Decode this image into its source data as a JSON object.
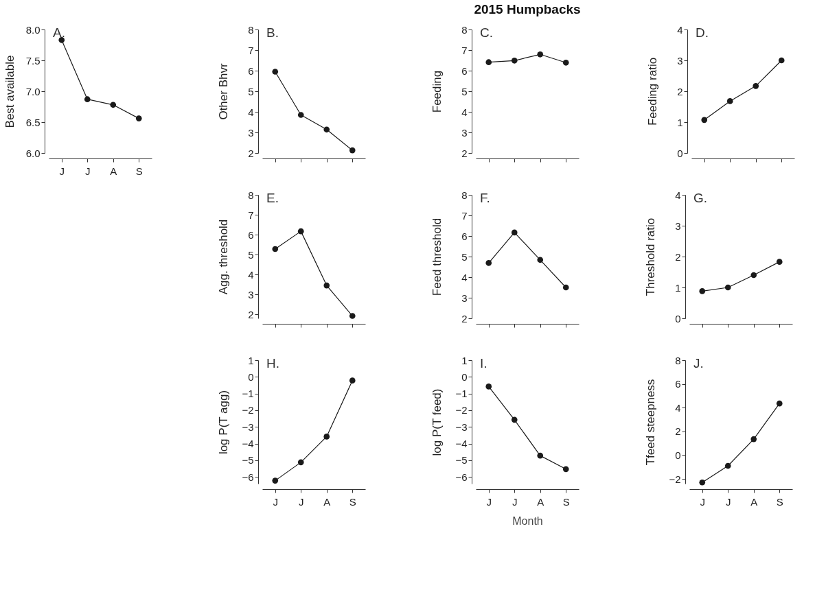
{
  "chart_data": [
    {
      "type": "line",
      "categories": [
        "J",
        "J",
        "A",
        "S"
      ],
      "values": [
        7.83,
        6.87,
        6.78,
        6.56
      ],
      "color": "#1a1a1a",
      "ylabel": "Best available",
      "ylim": [
        6.0,
        8.0
      ],
      "yticks": [
        {
          "value": 6,
          "label": "6.0"
        },
        {
          "value": 6.5,
          "label": "6.5"
        },
        {
          "value": 7,
          "label": "7.0"
        },
        {
          "value": 7.5,
          "label": "7.5"
        },
        {
          "value": 8,
          "label": "8.0"
        }
      ],
      "annotations": [
        "A."
      ],
      "marker": "circle",
      "line_style": "solid",
      "grid": false
    },
    {
      "type": "line",
      "categories": [
        null,
        null,
        null,
        null
      ],
      "values": [
        5.95,
        3.85,
        3.14,
        2.13
      ],
      "color": "#1a1a1a",
      "ylabel": "Other Bhvr",
      "ylim": [
        2,
        8
      ],
      "yticks": [
        2,
        3,
        4,
        5,
        6,
        7,
        8
      ],
      "annotations": [
        "B."
      ],
      "marker": "circle",
      "line_style": "solid",
      "grid": false
    },
    {
      "type": "line",
      "categories": [
        null,
        null,
        null,
        null
      ],
      "values": [
        6.41,
        6.49,
        6.79,
        6.39
      ],
      "color": "#1a1a1a",
      "title": "2015 Humpbacks",
      "ylabel": "Feeding",
      "ylim": [
        2,
        8
      ],
      "yticks": [
        2,
        3,
        4,
        5,
        6,
        7,
        8
      ],
      "annotations": [
        "C."
      ],
      "marker": "circle",
      "line_style": "solid",
      "grid": false
    },
    {
      "type": "line",
      "categories": [
        null,
        null,
        null,
        null
      ],
      "values": [
        1.07,
        1.68,
        2.17,
        3.0
      ],
      "color": "#1a1a1a",
      "ylabel": "Feeding ratio",
      "ylim": [
        0,
        4
      ],
      "yticks": [
        0,
        1,
        2,
        3,
        4
      ],
      "annotations": [
        "D."
      ],
      "marker": "circle",
      "line_style": "solid",
      "grid": false
    },
    {
      "type": "line",
      "categories": [
        null,
        null,
        null,
        null
      ],
      "values": [
        5.28,
        6.17,
        3.45,
        1.92
      ],
      "color": "#1a1a1a",
      "ylabel": "Agg. threshold",
      "ylim": [
        1.8,
        8
      ],
      "yticks": [
        2,
        3,
        4,
        5,
        6,
        7,
        8
      ],
      "annotations": [
        "E."
      ],
      "marker": "circle",
      "line_style": "solid",
      "grid": false
    },
    {
      "type": "line",
      "categories": [
        null,
        null,
        null,
        null
      ],
      "values": [
        4.69,
        6.17,
        4.84,
        3.5
      ],
      "color": "#1a1a1a",
      "ylabel": "Feed threshold",
      "ylim": [
        2,
        8
      ],
      "yticks": [
        2,
        3,
        4,
        5,
        6,
        7,
        8
      ],
      "annotations": [
        "F."
      ],
      "marker": "circle",
      "line_style": "solid",
      "grid": false
    },
    {
      "type": "line",
      "categories": [
        null,
        null,
        null,
        null
      ],
      "values": [
        0.88,
        1.0,
        1.4,
        1.83
      ],
      "color": "#1a1a1a",
      "ylabel": "Threshold ratio",
      "ylim": [
        0,
        4
      ],
      "yticks": [
        0,
        1,
        2,
        3,
        4
      ],
      "annotations": [
        "G."
      ],
      "marker": "circle",
      "line_style": "solid",
      "grid": false
    },
    {
      "type": "line",
      "categories": [
        "J",
        "J",
        "A",
        "S"
      ],
      "values": [
        -6.22,
        -5.12,
        -3.58,
        -0.22
      ],
      "color": "#1a1a1a",
      "ylabel": "log P(T agg)",
      "ylim": [
        -6.4,
        1
      ],
      "yticks": [
        -6,
        -5,
        -4,
        -3,
        -2,
        -1,
        0,
        1
      ],
      "annotations": [
        "H."
      ],
      "marker": "circle",
      "line_style": "solid",
      "grid": false
    },
    {
      "type": "line",
      "categories": [
        "J",
        "J",
        "A",
        "S"
      ],
      "values": [
        -0.58,
        -2.57,
        -4.72,
        -5.53
      ],
      "color": "#1a1a1a",
      "xlabel": "Month",
      "ylabel": "log P(T feed)",
      "ylim": [
        -6.4,
        1
      ],
      "yticks": [
        -6,
        -5,
        -4,
        -3,
        -2,
        -1,
        0,
        1
      ],
      "annotations": [
        "I."
      ],
      "marker": "circle",
      "line_style": "solid",
      "grid": false
    },
    {
      "type": "line",
      "categories": [
        "J",
        "J",
        "A",
        "S"
      ],
      "values": [
        -2.3,
        -0.9,
        1.35,
        4.35
      ],
      "color": "#1a1a1a",
      "ylabel": "Tfeed steepness",
      "ylim": [
        -2.4,
        8
      ],
      "yticks": [
        -2,
        0,
        2,
        4,
        6,
        8
      ],
      "annotations": [
        "J."
      ],
      "marker": "circle",
      "line_style": "solid",
      "grid": false
    }
  ]
}
